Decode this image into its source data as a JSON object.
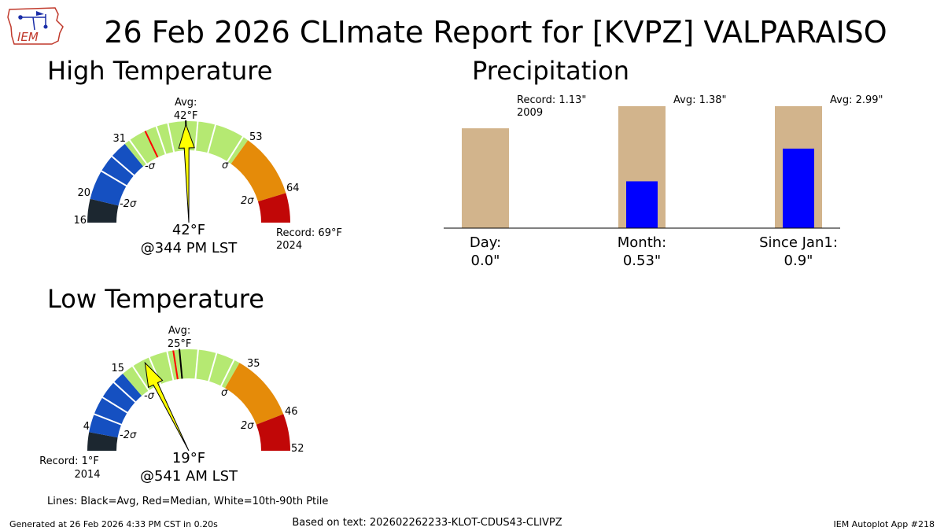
{
  "title": "26 Feb 2026 CLImate Report for [KVPZ] VALPARAISO",
  "logo": {
    "text": "IEM",
    "icon": "iowa-state-outline-logo"
  },
  "colors": {
    "very_cold": "#1c2730",
    "cold": "#1550c1",
    "normal": "#b5e972",
    "warm": "#e58b09",
    "hot": "#c10707",
    "needle": "#ffff00",
    "avg_line": "#000000",
    "median_line": "#ff0000",
    "pct_line": "#ffffff",
    "precip_avg": "#d2b48c",
    "precip_obs": "#0000ff"
  },
  "chart_data": [
    {
      "type": "gauge",
      "title": "High Temperature",
      "range": [
        16,
        69
      ],
      "ticks": [
        16,
        20,
        31,
        53,
        64
      ],
      "sigma_labels": [
        "-2σ",
        "-σ",
        "σ",
        "2σ"
      ],
      "bands": [
        {
          "from": 16,
          "to": 20,
          "class": "very_cold"
        },
        {
          "from": 20,
          "to": 31,
          "class": "cold"
        },
        {
          "from": 31,
          "to": 53,
          "class": "normal"
        },
        {
          "from": 53,
          "to": 64,
          "class": "warm"
        },
        {
          "from": 64,
          "to": 69,
          "class": "hot"
        }
      ],
      "avg": 42,
      "avg_label": "Avg:",
      "avg_value_label": "42°F",
      "median": 35,
      "percentile_lines": [
        25,
        28,
        32,
        37,
        39,
        44,
        47,
        52
      ],
      "observed": 42,
      "observed_label": "42°F",
      "time_label": "@344 PM LST",
      "record": {
        "label": "Record: 69°F",
        "year": "2024"
      }
    },
    {
      "type": "gauge",
      "title": "Low Temperature",
      "range": [
        1,
        52
      ],
      "ticks": [
        4,
        15,
        35,
        46,
        52
      ],
      "sigma_labels": [
        "-2σ",
        "-σ",
        "σ",
        "2σ"
      ],
      "bands": [
        {
          "from": 1,
          "to": 4,
          "class": "very_cold"
        },
        {
          "from": 4,
          "to": 15,
          "class": "cold"
        },
        {
          "from": 15,
          "to": 35,
          "class": "normal"
        },
        {
          "from": 35,
          "to": 46,
          "class": "warm"
        },
        {
          "from": 46,
          "to": 52,
          "class": "hot"
        }
      ],
      "avg": 25,
      "avg_label": "Avg:",
      "avg_value_label": "25°F",
      "median": 24,
      "percentile_lines": [
        7,
        10,
        13,
        17,
        20,
        23,
        28,
        31,
        34
      ],
      "observed": 19,
      "observed_label": "19°F",
      "time_label": "@541 AM LST",
      "record": {
        "label": "Record: 1°F",
        "year": "2014"
      }
    },
    {
      "type": "bar",
      "title": "Precipitation",
      "ylim": [
        0,
        1.38
      ],
      "categories": [
        {
          "label": "Day:",
          "value_label": "0.0\"",
          "avg": 1.13,
          "observed": 0.0,
          "annotation": "Record: 1.13\"",
          "annotation_year": "2009"
        },
        {
          "label": "Month:",
          "value_label": "0.53\"",
          "avg": 1.38,
          "observed": 0.53,
          "annotation": "Avg: 1.38\""
        },
        {
          "label": "Since Jan1:",
          "value_label": "0.9\"",
          "avg": 2.99,
          "observed": 0.9,
          "annotation": "Avg: 2.99\""
        }
      ]
    }
  ],
  "legend_note": "Lines: Black=Avg, Red=Median, White=10th-90th Ptile",
  "footer": {
    "generated": "Generated at 26 Feb 2026 4:33 PM CST in 0.20s",
    "based_on": "Based on text: 202602262233-KLOT-CDUS43-CLIVPZ",
    "app": "IEM Autoplot App #218"
  }
}
